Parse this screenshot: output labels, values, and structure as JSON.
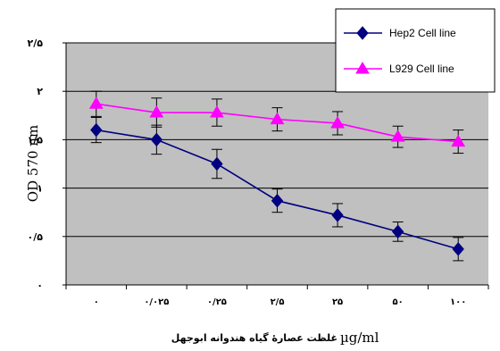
{
  "chart_data": {
    "type": "line",
    "categories": [
      "۰",
      "۰/۰۲۵",
      "۰/۲۵",
      "۲/۵",
      "۲۵",
      "۵۰",
      "۱۰۰"
    ],
    "y_tick_labels": [
      "۰",
      "۰/۵",
      "۱",
      "۱/۵",
      "۲",
      "۲/۵"
    ],
    "y_ticks": [
      0,
      0.5,
      1,
      1.5,
      2,
      2.5
    ],
    "ylim": [
      0,
      2.5
    ],
    "ylabel": "OD 570 nm",
    "xlabel": "غلظت عصارهٔ گیاه هندوانه ابوجهل",
    "xlabel_unit": "µg/ml",
    "grid": true,
    "legend_position": "top-right",
    "series": [
      {
        "name": "Hep2 Cell line",
        "color": "#000080",
        "marker": "diamond",
        "values": [
          1.6,
          1.5,
          1.25,
          0.87,
          0.72,
          0.55,
          0.37
        ],
        "errors": [
          0.13,
          0.15,
          0.15,
          0.12,
          0.12,
          0.1,
          0.12
        ]
      },
      {
        "name": "L929 Cell line",
        "color": "#ff00ff",
        "marker": "triangle",
        "values": [
          1.87,
          1.78,
          1.78,
          1.71,
          1.67,
          1.53,
          1.48
        ],
        "errors": [
          0.13,
          0.15,
          0.14,
          0.12,
          0.12,
          0.11,
          0.12
        ]
      }
    ]
  }
}
